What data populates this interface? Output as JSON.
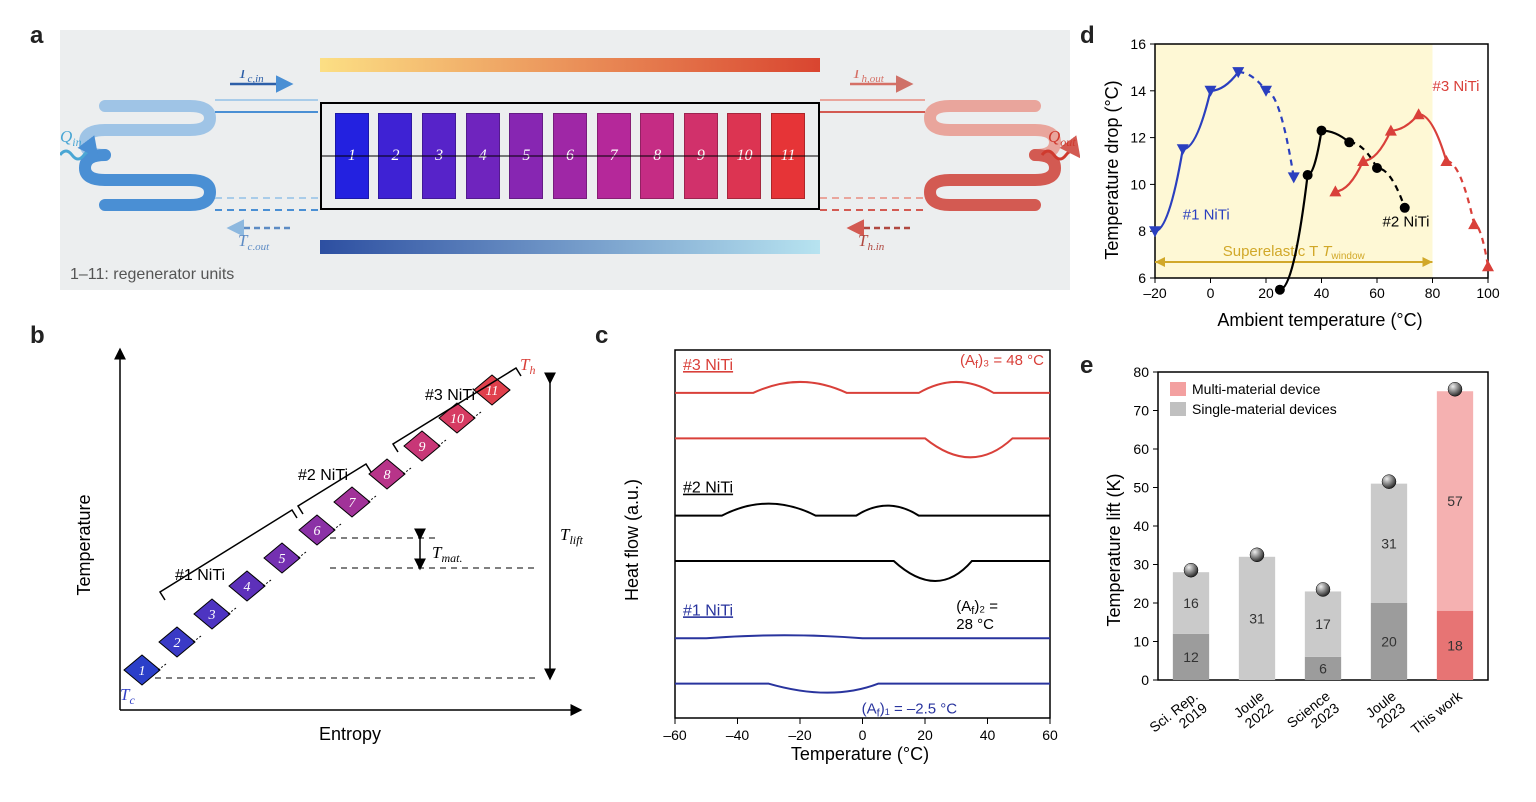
{
  "panelA": {
    "label": "a",
    "gradient_top": [
      "#fcdf84",
      "#d94530"
    ],
    "gradient_bottom": [
      "#2d4fa1",
      "#b7e3f0"
    ],
    "box_border": "#000000",
    "background": "#eceeef",
    "unit_colors": [
      "#2321e0",
      "#3e22d4",
      "#5723c9",
      "#6f24be",
      "#8726b2",
      "#9f27a6",
      "#b5289a",
      "#c52c84",
      "#d1316b",
      "#dc3452",
      "#e63437"
    ],
    "unit_labels": [
      "1",
      "2",
      "3",
      "4",
      "5",
      "6",
      "7",
      "8",
      "9",
      "10",
      "11"
    ],
    "q_in": "Q",
    "q_in_sub": "in",
    "q_out": "Q",
    "q_out_sub": "out",
    "tc_in": "T",
    "tc_in_sub": "c,in",
    "tc_out": "T",
    "tc_out_sub": "c,out",
    "th_in": "T",
    "th_in_sub": "h,in",
    "th_out": "T",
    "th_out_sub": "h,out",
    "footnote": "1–11: regenerator units",
    "cold_color": "#4a8fd4",
    "cold_light": "#a9cce9",
    "hot_color": "#d35a52",
    "hot_light": "#e9a59c"
  },
  "panelB": {
    "label": "b",
    "y_axis": "Temperature",
    "x_axis": "Entropy",
    "tc_label": "T",
    "tc_sub": "c",
    "th_label": "T",
    "th_sub": "h",
    "group1": "#1 NiTi",
    "group2": "#2 NiTi",
    "group3": "#3 NiTi",
    "tmat": "T",
    "tmat_sub": "mat.",
    "tlift": "T",
    "tlift_sub": "lift",
    "tile_colors": [
      "#2b3fc9",
      "#3a3ac6",
      "#4d34c1",
      "#5d30ba",
      "#7430b1",
      "#8b31a6",
      "#a13299",
      "#b73489",
      "#c83777",
      "#d63b62",
      "#e0404c"
    ],
    "tile_labels": [
      "1",
      "2",
      "3",
      "4",
      "5",
      "6",
      "7",
      "8",
      "9",
      "10",
      "11"
    ]
  },
  "panelC": {
    "label": "c",
    "y_axis": "Heat flow (a.u.)",
    "x_axis": "Temperature (°C)",
    "x_min": -60,
    "x_max": 60,
    "x_step": 20,
    "series": [
      {
        "name": "#3 NiTi",
        "color": "#d9403a",
        "af_label": "(A",
        "af_sub": "f",
        "af_rest": ")₃ = 48 °C"
      },
      {
        "name": "#2 NiTi",
        "color": "#000000",
        "af_label": "(A",
        "af_sub": "f",
        "af_rest": ")₂ = 28 °C"
      },
      {
        "name": "#1 NiTi",
        "color": "#29349e",
        "af_label": "(A",
        "af_sub": "f",
        "af_rest": ")₁ = –2.5 °C"
      }
    ]
  },
  "panelD": {
    "label": "d",
    "y_axis": "Temperature drop (°C)",
    "x_axis": "Ambient temperature (°C)",
    "x_min": -20,
    "x_max": 100,
    "x_step": 20,
    "y_min": 6,
    "y_max": 16,
    "y_step": 2,
    "superelastic_label": "Superelastic T",
    "superelastic_sub": "window",
    "window_color": "#fef7d0",
    "window_stroke": "#d1a829",
    "series": [
      {
        "name": "#1 NiTi",
        "color": "#2a3fbf",
        "marker": "triangle-down",
        "points": [
          [
            -20,
            8
          ],
          [
            -10,
            11.5
          ],
          [
            0,
            14
          ],
          [
            10,
            14.8
          ],
          [
            20,
            14
          ],
          [
            30,
            10.3
          ]
        ]
      },
      {
        "name": "#2 NiTi",
        "color": "#000000",
        "marker": "circle",
        "points": [
          [
            25,
            5.5
          ],
          [
            35,
            10.4
          ],
          [
            40,
            12.3
          ],
          [
            50,
            11.8
          ],
          [
            60,
            10.7
          ],
          [
            70,
            9
          ]
        ]
      },
      {
        "name": "#3 NiTi",
        "color": "#d9403a",
        "marker": "triangle-up",
        "points": [
          [
            45,
            9.7
          ],
          [
            55,
            11
          ],
          [
            65,
            12.3
          ],
          [
            75,
            13
          ],
          [
            85,
            11
          ],
          [
            95,
            8.3
          ],
          [
            100,
            6.5
          ]
        ]
      }
    ]
  },
  "panelE": {
    "label": "e",
    "y_axis": "Temperature lift (K)",
    "y_min": 0,
    "y_max": 80,
    "y_step": 10,
    "legend": [
      {
        "label": "Multi-material device",
        "color": "#f3a0a0"
      },
      {
        "label": "Single-material devices",
        "color": "#c0c0c0"
      }
    ],
    "categories": [
      "Sci. Rep.\n2019",
      "Joule\n2022",
      "Science\n2023",
      "Joule\n2023",
      "This work"
    ],
    "bars": [
      {
        "total": 28,
        "seg1": 12,
        "seg1_label": "12",
        "seg2": 16,
        "seg2_label": "16",
        "multi": false
      },
      {
        "total": 32,
        "seg1": 0,
        "seg1_label": "",
        "seg2": 31,
        "seg2_label": "31",
        "multi": false
      },
      {
        "total": 23,
        "seg1": 6,
        "seg1_label": "6",
        "seg2": 17,
        "seg2_label": "17",
        "multi": false
      },
      {
        "total": 51,
        "seg1": 20,
        "seg1_label": "20",
        "seg2": 31,
        "seg2_label": "31",
        "multi": false
      },
      {
        "total": 75,
        "seg1": 18,
        "seg1_label": "18",
        "seg2": 57,
        "seg2_label": "57",
        "multi": true
      }
    ],
    "single_dark": "#9c9c9c",
    "single_light": "#cacaca",
    "multi_dark": "#e77474",
    "multi_light": "#f5b1b1",
    "marker_fill": "#2c2c2c"
  }
}
